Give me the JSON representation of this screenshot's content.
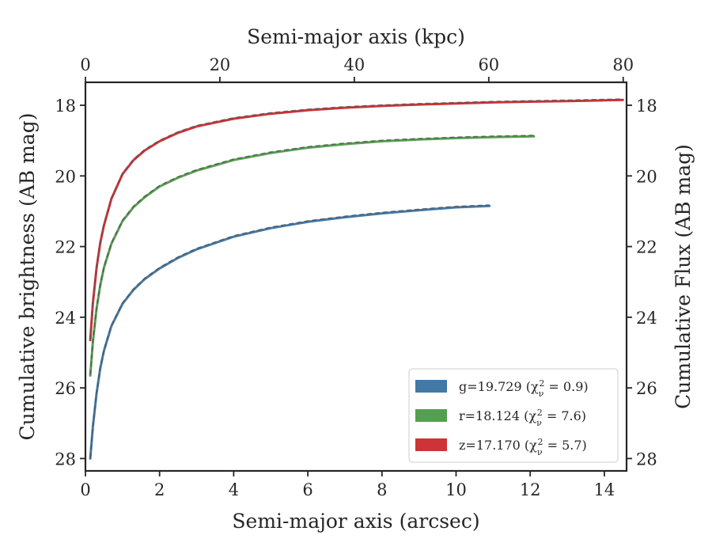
{
  "chart_data": {
    "type": "line",
    "xlabel": "Semi-major axis (arcsec)",
    "ylabel": "Cumulative brightness (AB mag)",
    "x2label": "Semi-major axis (kpc)",
    "y2label": "Cumulative Flux (AB mag)",
    "xlim": [
      0,
      14.6
    ],
    "ylim": [
      28.35,
      17.35
    ],
    "x2lim": [
      0,
      80.5
    ],
    "y_inverted": true,
    "xticks": [
      "0",
      "2",
      "4",
      "6",
      "8",
      "10",
      "12",
      "14"
    ],
    "yticks": [
      "18",
      "20",
      "22",
      "24",
      "26",
      "28"
    ],
    "x2ticks": [
      "0",
      "20",
      "40",
      "60",
      "80"
    ],
    "grid": false,
    "legend_position": "lower-right",
    "legend": [
      {
        "label": "g=19.729 (χ",
        "sub": "ν",
        "sup": "2",
        "tail": " = 0.9)",
        "color": "#4379a7"
      },
      {
        "label": "r=18.124 (χ",
        "sub": "ν",
        "sup": "2",
        "tail": " = 7.6)",
        "color": "#55a050"
      },
      {
        "label": "z=17.170 (χ",
        "sub": "ν",
        "sup": "2",
        "tail": " = 5.7)",
        "color": "#cf3337"
      }
    ],
    "series": [
      {
        "color": "#4379a7",
        "x": [
          0.13,
          0.2,
          0.3,
          0.4,
          0.5,
          0.7,
          1.0,
          1.3,
          1.6,
          2.0,
          2.5,
          3.0,
          4.0,
          5.0,
          6.0,
          7.0,
          8.0,
          9.0,
          10.0,
          10.9
        ],
        "y": [
          28.0,
          27.1,
          26.15,
          25.45,
          24.95,
          24.25,
          23.62,
          23.22,
          22.92,
          22.62,
          22.32,
          22.08,
          21.72,
          21.48,
          21.3,
          21.17,
          21.06,
          20.97,
          20.89,
          20.85
        ]
      },
      {
        "color": "#55a050",
        "x": [
          0.13,
          0.2,
          0.3,
          0.4,
          0.5,
          0.7,
          1.0,
          1.3,
          1.6,
          2.0,
          2.5,
          3.0,
          4.0,
          5.0,
          6.0,
          7.0,
          8.0,
          9.0,
          10.0,
          11.0,
          12.1
        ],
        "y": [
          25.65,
          24.7,
          23.75,
          23.1,
          22.6,
          21.92,
          21.28,
          20.88,
          20.6,
          20.3,
          20.05,
          19.85,
          19.55,
          19.35,
          19.2,
          19.1,
          19.02,
          18.97,
          18.93,
          18.9,
          18.88
        ]
      },
      {
        "color": "#cf3337",
        "x": [
          0.13,
          0.2,
          0.3,
          0.4,
          0.5,
          0.7,
          1.0,
          1.3,
          1.6,
          2.0,
          2.5,
          3.0,
          4.0,
          5.0,
          6.0,
          7.0,
          8.0,
          9.0,
          10.0,
          11.0,
          12.0,
          13.0,
          14.0,
          14.5
        ],
        "y": [
          24.65,
          23.6,
          22.6,
          21.9,
          21.4,
          20.65,
          19.95,
          19.55,
          19.28,
          19.02,
          18.78,
          18.6,
          18.38,
          18.24,
          18.14,
          18.07,
          18.02,
          17.98,
          17.95,
          17.92,
          17.9,
          17.88,
          17.86,
          17.85
        ]
      }
    ]
  }
}
